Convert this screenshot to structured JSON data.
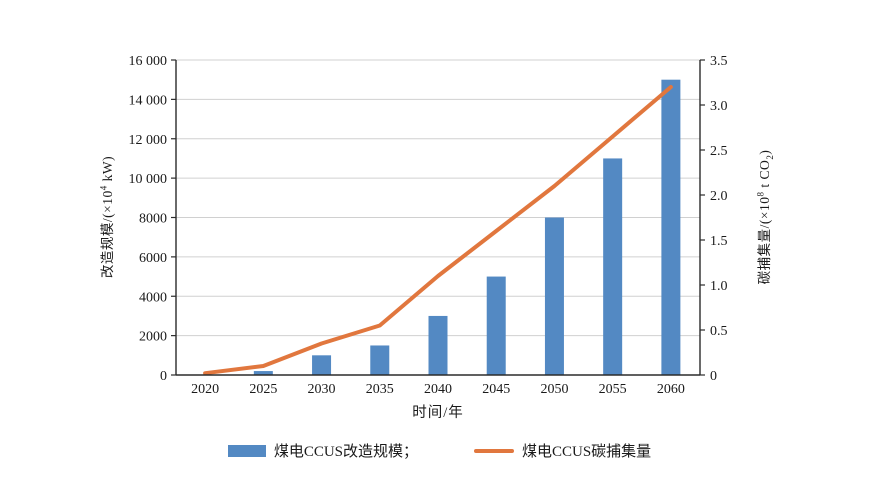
{
  "chart_data": {
    "type": "combo",
    "categories": [
      "2020",
      "2025",
      "2030",
      "2035",
      "2040",
      "2045",
      "2050",
      "2055",
      "2060"
    ],
    "series": [
      {
        "name": "煤电CCUS改造规模",
        "type": "bar",
        "y_axis": "left",
        "color": "#5389C3",
        "values": [
          0,
          200,
          1000,
          1500,
          3000,
          5000,
          8000,
          11000,
          15000
        ]
      },
      {
        "name": "煤电CCUS碳捕集量",
        "type": "line",
        "y_axis": "right",
        "color": "#E1773E",
        "values": [
          0.02,
          0.1,
          0.35,
          0.55,
          1.1,
          1.6,
          2.1,
          2.65,
          3.2
        ]
      }
    ],
    "left_axis": {
      "title": "改造规模/(×10⁴ kW)",
      "tick_labels": [
        "0",
        "2000",
        "4000",
        "6000",
        "8000",
        "10 000",
        "12 000",
        "14 000",
        "16 000"
      ],
      "range": [
        0,
        16000
      ],
      "tick_step": 2000
    },
    "right_axis": {
      "title": "碳捕集量/(×10⁸ t CO₂)",
      "tick_labels": [
        "0",
        "0.5",
        "1.0",
        "1.5",
        "2.0",
        "2.5",
        "3.0",
        "3.5"
      ],
      "range": [
        0,
        3.5
      ],
      "tick_step": 0.5
    },
    "x_axis": {
      "title": "时间/年"
    },
    "grid": true,
    "legend_position": "bottom"
  },
  "axis_titles": {
    "left": {
      "pre": "改造规模/(×10",
      "sup": "4",
      "post": " kW)"
    },
    "right": {
      "pre": "碳捕集量/(×10",
      "sup": "8",
      "mid": " t CO",
      "sub": "2",
      "post": ")"
    }
  },
  "legend": {
    "items": [
      {
        "label": "煤电CCUS改造规模；"
      },
      {
        "label": "煤电CCUS碳捕集量"
      }
    ]
  },
  "colors": {
    "bar": "#5389C3",
    "line": "#E1773E",
    "grid": "#D0D0D0",
    "axis": "#2B2B2B",
    "text": "#1A1A1A",
    "background": "#FFFFFF"
  }
}
